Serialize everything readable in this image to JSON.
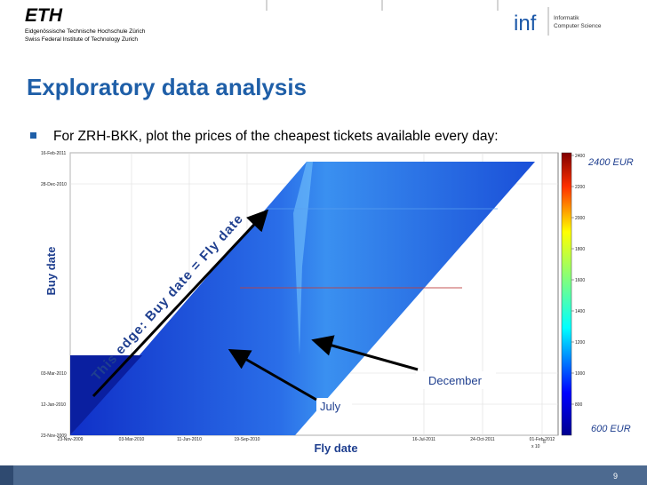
{
  "header": {
    "logo": "ETH",
    "line1": "Eidgenössische Technische Hochschule Zürich",
    "line2": "Swiss Federal Institute of Technology Zurich",
    "dept_logo": "inf",
    "dept1": "Informatik",
    "dept2": "Computer Science"
  },
  "title": "Exploratory data analysis",
  "bullet": "For ZRH-BKK, plot the prices of the cheapest tickets available every day:",
  "figure": {
    "y_label": "Buy date",
    "x_label": "Fly date",
    "y_ticks": [
      "16-Feb-2011",
      "28-Dec-2010",
      "03-Mar-2010",
      "12-Jan-2010",
      "23-Nov-2009"
    ],
    "x_ticks": [
      "23-Nov-2009",
      "03-Mar-2010",
      "11-Jun-2010",
      "19-Sep-2010",
      "16-Jul-2011",
      "24-Oct-2011",
      "01-Feb-2012"
    ],
    "x_exponent": "x 10",
    "x_exponent_power": "5",
    "colorbar_ticks": [
      "2400",
      "2200",
      "2000",
      "1800",
      "1600",
      "1400",
      "1200",
      "1000",
      "800"
    ],
    "colorbar_max": "2400 EUR",
    "colorbar_min": "600 EUR",
    "edge_note": "This edge: Buy date = Fly date",
    "note_december": "December",
    "note_july": "July"
  },
  "footer": {
    "page": "9"
  }
}
